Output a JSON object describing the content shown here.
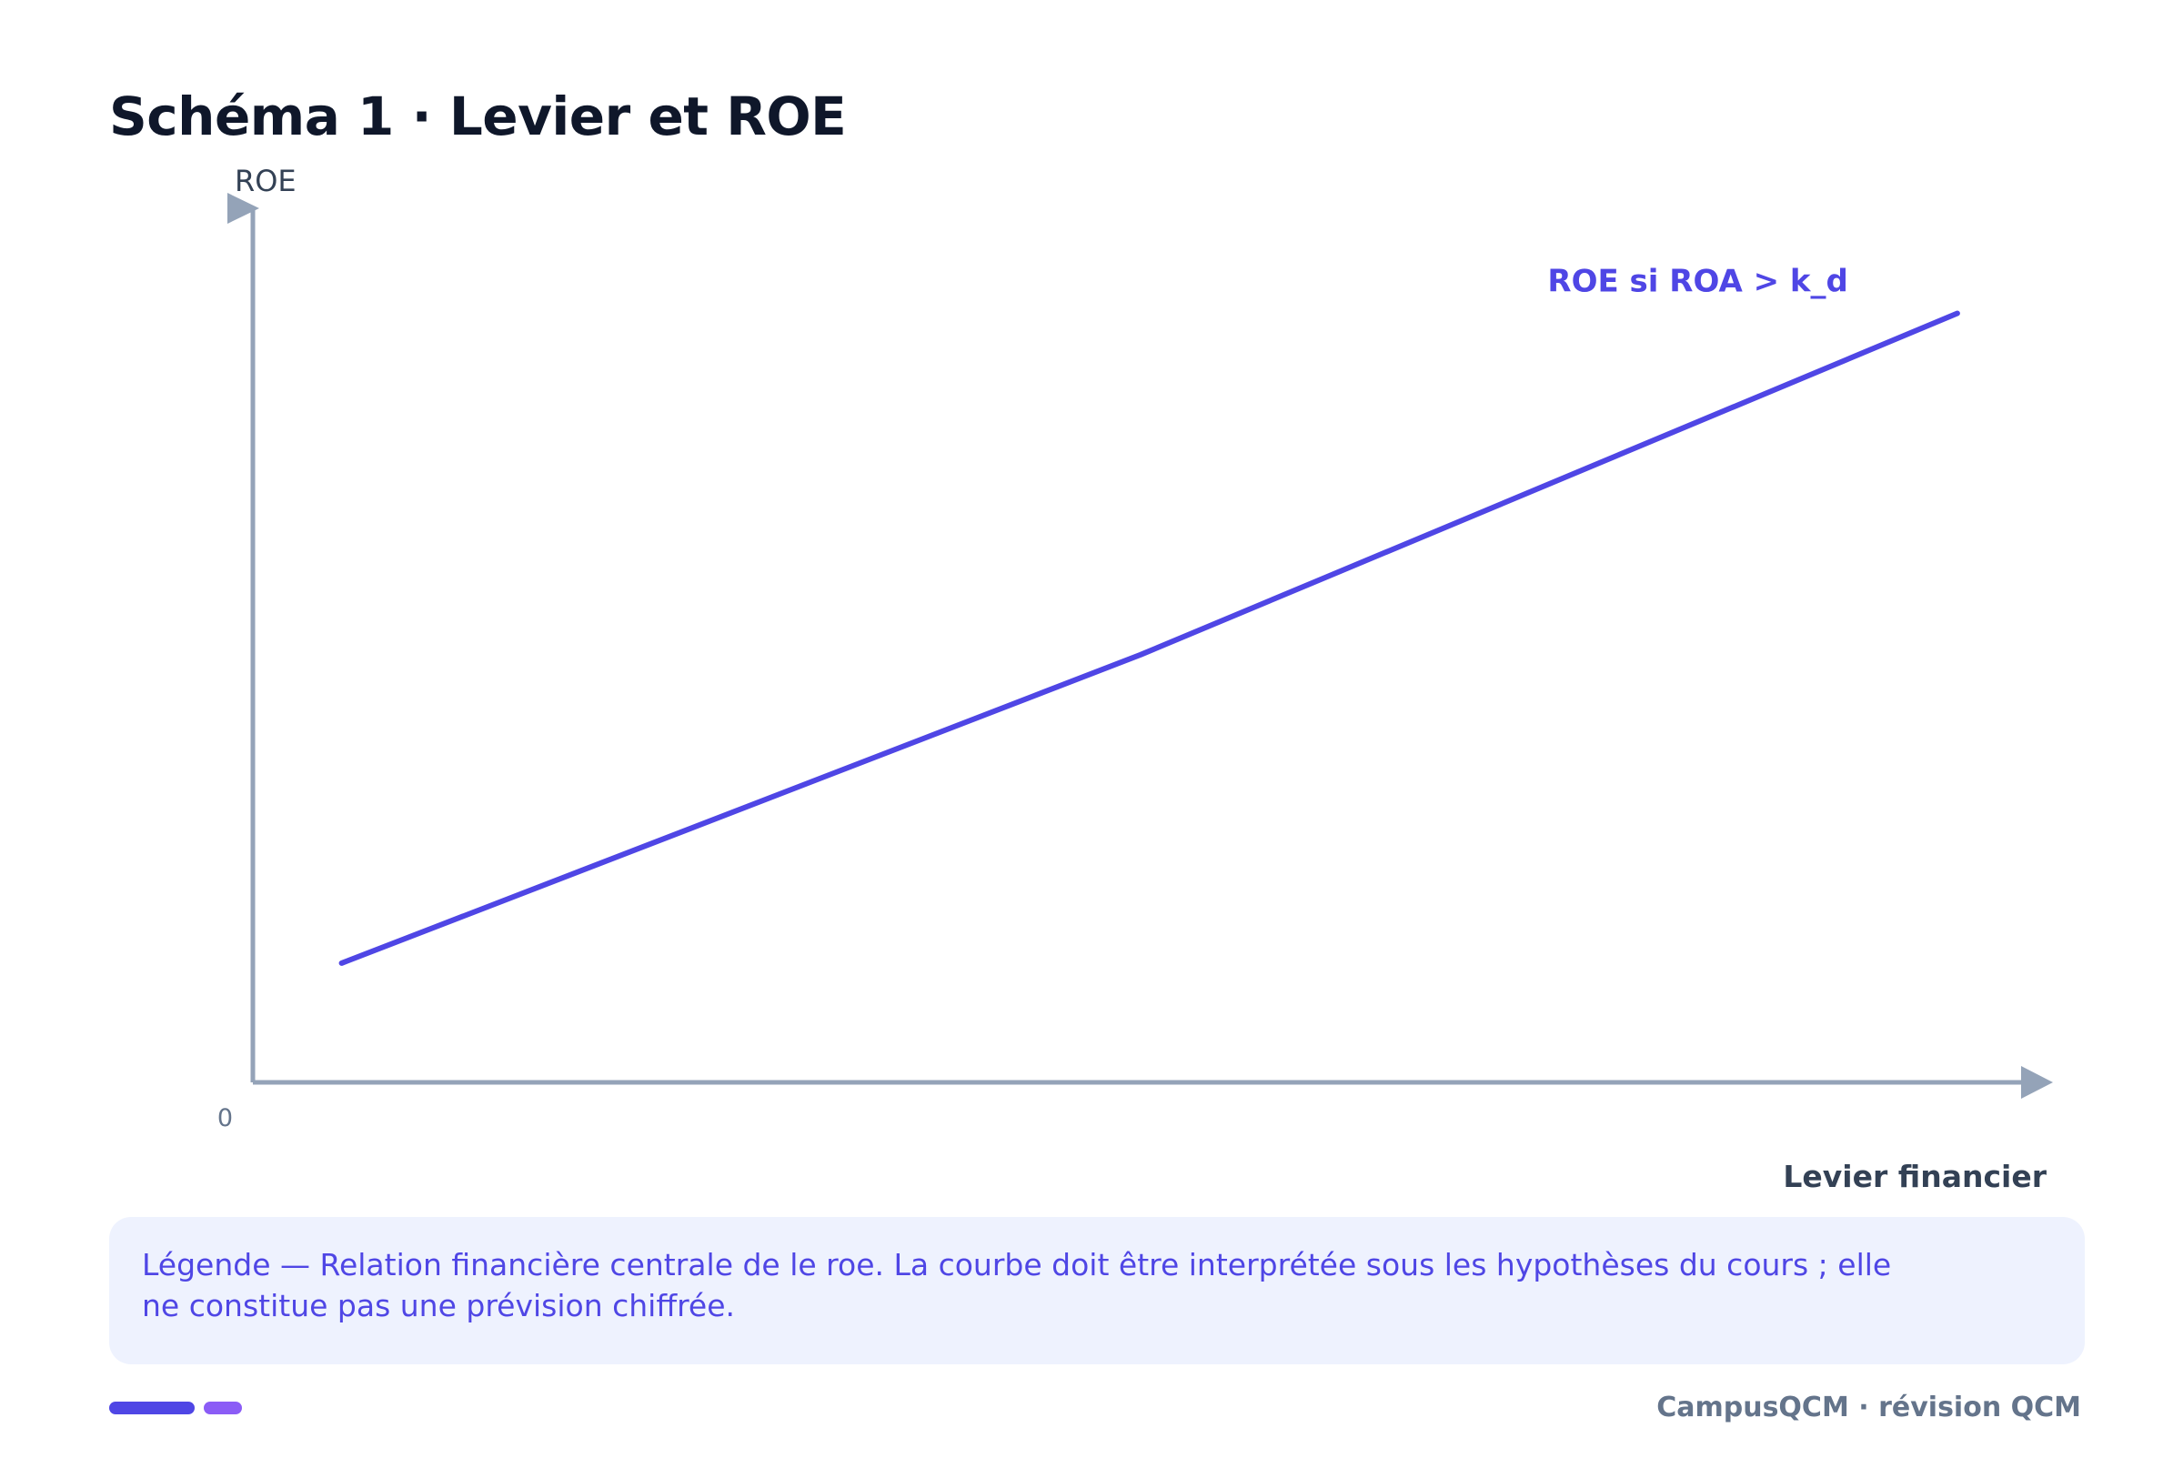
{
  "title": "Schéma 1 · Levier et ROE",
  "chart_data": {
    "type": "line",
    "ylabel": "ROE",
    "xlabel": "Levier financier",
    "origin_label": "0",
    "xlim": [
      0,
      10
    ],
    "ylim": [
      0,
      10
    ],
    "grid": false,
    "legend": "none",
    "series": [
      {
        "name": "ROE si ROA > k_d",
        "color": "#4f46e5",
        "x": [
          0.5,
          5.0,
          9.6
        ],
        "y": [
          1.38,
          4.95,
          8.9
        ]
      }
    ]
  },
  "legend_box": {
    "text": "Légende — Relation financière centrale de le roe. La courbe doit être interprétée sous les hypothèses du cours ; elle ne constitue pas une prévision chiffrée."
  },
  "footer": {
    "text": "CampusQCM · révision QCM"
  },
  "colors": {
    "axis": "#94a3b8",
    "line": "#4f46e5",
    "title": "#0f172a",
    "legend_bg": "#eef2fe",
    "bar_primary": "#4f46e5",
    "bar_secondary": "#8b5cf6"
  }
}
